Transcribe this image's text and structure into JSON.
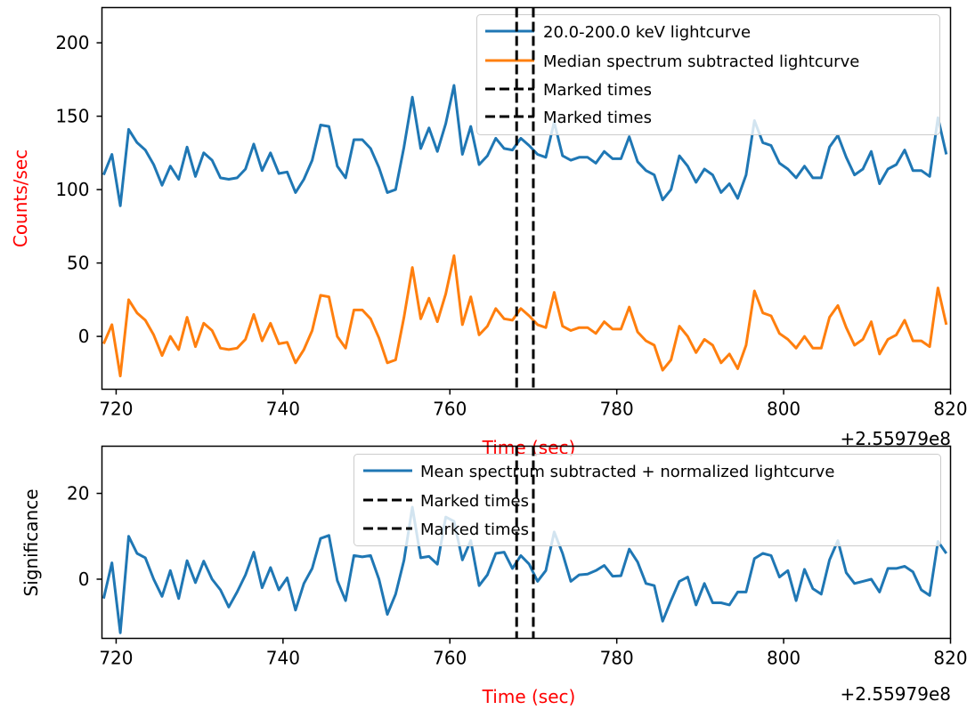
{
  "chart_data": [
    {
      "type": "line",
      "title": "",
      "xlabel": "Time (sec)",
      "ylabel": "Counts/sec",
      "xlim": [
        718.3,
        820
      ],
      "ylim": [
        -36,
        224
      ],
      "x_offset_label": "+2.55979e8",
      "xticks": [
        720,
        740,
        760,
        780,
        800,
        820
      ],
      "yticks": [
        0,
        50,
        100,
        150,
        200
      ],
      "marked_times": [
        768,
        770
      ],
      "legend_position": "top-right",
      "x_start": 718.5,
      "x_step": 1,
      "series": [
        {
          "name": "20.0-200.0 keV lightcurve",
          "color": "#1f77b4",
          "values": [
            110,
            124,
            89,
            141,
            132,
            127,
            117,
            103,
            116,
            107,
            129,
            109,
            125,
            120,
            108,
            107,
            108,
            114,
            131,
            113,
            125,
            111,
            112,
            98,
            107,
            120,
            144,
            143,
            116,
            108,
            134,
            134,
            128,
            115,
            98,
            100,
            129,
            163,
            128,
            142,
            126,
            145,
            171,
            124,
            143,
            117,
            123,
            135,
            128,
            127,
            135,
            130,
            124,
            122,
            146,
            123,
            120,
            122,
            122,
            118,
            126,
            121,
            121,
            136,
            119,
            113,
            110,
            93,
            100,
            123,
            116,
            105,
            114,
            110,
            98,
            104,
            94,
            110,
            147,
            132,
            130,
            118,
            114,
            108,
            116,
            108,
            108,
            129,
            137,
            122,
            110,
            114,
            126,
            104,
            114,
            117,
            127,
            113,
            113,
            109,
            149,
            124
          ]
        },
        {
          "name": "Median spectrum subtracted lightcurve",
          "color": "#ff7f0e",
          "values": [
            -5,
            8,
            -27,
            25,
            16,
            11,
            1,
            -13,
            0,
            -9,
            13,
            -7,
            9,
            4,
            -8,
            -9,
            -8,
            -2,
            15,
            -3,
            9,
            -5,
            -4,
            -18,
            -9,
            4,
            28,
            27,
            0,
            -8,
            18,
            18,
            12,
            -1,
            -18,
            -16,
            13,
            47,
            12,
            26,
            10,
            29,
            55,
            8,
            27,
            1,
            7,
            19,
            12,
            11,
            19,
            14,
            8,
            6,
            30,
            7,
            4,
            6,
            6,
            2,
            10,
            5,
            5,
            20,
            3,
            -3,
            -6,
            -23,
            -16,
            7,
            0,
            -11,
            -2,
            -6,
            -18,
            -12,
            -22,
            -6,
            31,
            16,
            14,
            2,
            -2,
            -8,
            0,
            -8,
            -8,
            13,
            21,
            6,
            -6,
            -2,
            10,
            -12,
            -2,
            1,
            11,
            -3,
            -3,
            -7,
            33,
            8
          ]
        }
      ],
      "legend": [
        {
          "label": "20.0-200.0 keV lightcurve",
          "style": "solid",
          "color": "#1f77b4"
        },
        {
          "label": "Median spectrum subtracted lightcurve",
          "style": "solid",
          "color": "#ff7f0e"
        },
        {
          "label": "Marked times",
          "style": "dashed",
          "color": "#000000"
        },
        {
          "label": "Marked times",
          "style": "dashed",
          "color": "#000000"
        }
      ],
      "colors": {
        "xlabel": "#ff0000",
        "ylabel": "#ff0000"
      }
    },
    {
      "type": "line",
      "title": "",
      "xlabel": "Time (sec)",
      "ylabel": "Significance",
      "xlim": [
        718.3,
        820
      ],
      "ylim": [
        -13.8,
        31
      ],
      "x_offset_label": "+2.55979e8",
      "xticks": [
        720,
        740,
        760,
        780,
        800,
        820
      ],
      "yticks": [
        0,
        20
      ],
      "marked_times": [
        768,
        770
      ],
      "legend_position": "top-right",
      "x_start": 718.5,
      "x_step": 1,
      "series": [
        {
          "name": "Mean spectrum subtracted + normalized lightcurve",
          "color": "#1f77b4",
          "values": [
            -4.5,
            3.8,
            -12.5,
            10,
            6,
            5,
            0,
            -4,
            2,
            -4.5,
            4.3,
            -0.8,
            4.2,
            0,
            -2.5,
            -6.5,
            -3,
            1,
            6.3,
            -2,
            2.7,
            -2.5,
            0.3,
            -7.2,
            -1,
            2.5,
            9.5,
            10.2,
            -0.3,
            -5,
            5.5,
            5.2,
            5.5,
            0,
            -8.2,
            -3.5,
            4.4,
            16.8,
            5,
            5.3,
            3.5,
            14.5,
            13.5,
            4.5,
            9,
            -1.5,
            1,
            6,
            6.3,
            2.5,
            5.5,
            3.5,
            -0.5,
            2,
            11,
            6,
            -0.5,
            1,
            1.2,
            2,
            3.2,
            0.7,
            0.8,
            7,
            4,
            -1,
            -1.5,
            -9.8,
            -5,
            -0.5,
            0.5,
            -6,
            -1,
            -5.5,
            -5.5,
            -6,
            -3,
            -3,
            4.8,
            6,
            5.5,
            0.5,
            2,
            -5,
            2.3,
            -2.2,
            -3.5,
            4.5,
            9,
            1.5,
            -1,
            -0.5,
            0,
            -3,
            2.5,
            2.5,
            3,
            1.7,
            -2.5,
            -3.8,
            8.8,
            6
          ]
        }
      ],
      "legend": [
        {
          "label": "Mean spectrum subtracted + normalized lightcurve",
          "style": "solid",
          "color": "#1f77b4"
        },
        {
          "label": "Marked times",
          "style": "dashed",
          "color": "#000000"
        },
        {
          "label": "Marked times",
          "style": "dashed",
          "color": "#000000"
        }
      ],
      "colors": {
        "xlabel": "#ff0000",
        "ylabel": "#000000"
      }
    }
  ]
}
